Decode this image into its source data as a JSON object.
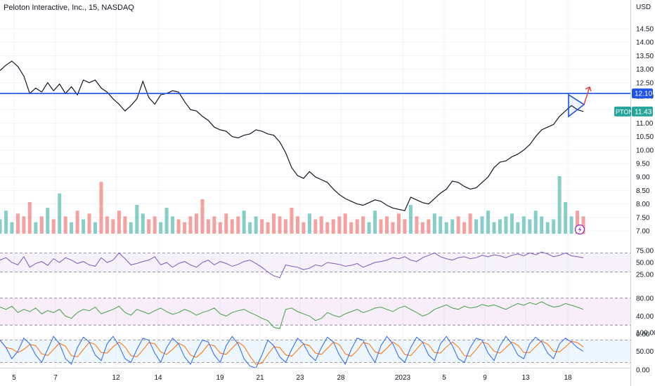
{
  "header": {
    "title": "Peloton Interactive, Inc., 15, NASDAQ",
    "currency": "USD"
  },
  "chart_data": {
    "type": "line",
    "title": "Peloton Interactive, Inc., 15, NASDAQ",
    "ylim": [
      6.9,
      14.9
    ],
    "price_ticks": [
      "14.50",
      "14.00",
      "13.50",
      "13.00",
      "12.50",
      "12.00",
      "11.50",
      "11.00",
      "10.50",
      "10.00",
      "9.50",
      "9.00",
      "8.50",
      "8.00",
      "7.50",
      "7.00"
    ],
    "x_labels": [
      "5",
      "7",
      "12",
      "14",
      "19",
      "21",
      "23",
      "28",
      "2023",
      "5",
      "9",
      "13",
      "18"
    ],
    "grid": true,
    "series": [
      {
        "values": [
          12.95,
          13.15,
          13.3,
          13.1,
          12.75,
          12.1,
          12.3,
          12.15,
          12.5,
          12.2,
          12.45,
          12.1,
          12.35,
          12.05,
          12.6,
          12.5,
          12.6,
          12.3,
          12.15,
          11.9,
          11.7,
          11.45,
          11.65,
          11.9,
          12.55,
          11.95,
          11.7,
          12.05,
          12.1,
          12.2,
          12.15,
          11.8,
          11.5,
          11.45,
          11.25,
          11.1,
          10.85,
          10.75,
          10.7,
          10.5,
          10.45,
          10.55,
          10.6,
          10.75,
          10.7,
          10.6,
          10.55,
          10.3,
          9.9,
          9.35,
          9.05,
          8.95,
          9.2,
          9.0,
          8.9,
          8.8,
          8.55,
          8.35,
          8.2,
          8.1,
          8.0,
          7.95,
          8.05,
          8.15,
          8.1,
          7.95,
          7.85,
          7.8,
          7.75,
          8.25,
          8.15,
          8.05,
          8.0,
          8.2,
          8.4,
          8.55,
          8.85,
          8.8,
          8.65,
          8.55,
          8.6,
          8.8,
          9.0,
          9.35,
          9.55,
          9.6,
          9.75,
          9.85,
          10.0,
          10.2,
          10.5,
          10.75,
          10.85,
          10.95,
          11.25,
          11.45,
          11.65,
          11.5,
          11.43
        ]
      }
    ],
    "current_price": {
      "symbol": "PTON",
      "value": "11.43",
      "color": "#26a69a"
    },
    "horizontal_level": {
      "value": 12.1,
      "label": "12.10",
      "color": "#1e53e5"
    },
    "volume": {
      "heights": [
        0.25,
        0.4,
        0.2,
        0.35,
        0.3,
        0.55,
        0.2,
        0.3,
        0.45,
        0.25,
        0.7,
        0.3,
        0.2,
        0.4,
        0.25,
        0.35,
        0.2,
        0.9,
        0.3,
        0.25,
        0.4,
        0.3,
        0.2,
        0.5,
        0.35,
        0.25,
        0.3,
        0.2,
        0.45,
        0.3,
        0.25,
        0.2,
        0.3,
        0.35,
        0.6,
        0.25,
        0.3,
        0.2,
        0.35,
        0.25,
        0.3,
        0.4,
        0.2,
        0.3,
        0.25,
        0.2,
        0.35,
        0.3,
        0.25,
        0.45,
        0.3,
        0.2,
        0.35,
        0.25,
        0.3,
        0.2,
        0.25,
        0.3,
        0.35,
        0.2,
        0.25,
        0.3,
        0.2,
        0.4,
        0.25,
        0.3,
        0.2,
        0.35,
        0.25,
        0.5,
        0.3,
        0.2,
        0.25,
        0.35,
        0.3,
        0.2,
        0.25,
        0.3,
        0.2,
        0.35,
        0.25,
        0.3,
        0.4,
        0.2,
        0.25,
        0.3,
        0.35,
        0.2,
        0.3,
        0.25,
        0.4,
        0.3,
        0.2,
        0.25,
        1.0,
        0.55,
        0.3,
        0.4,
        0.3
      ],
      "up_color": "#26a69a",
      "down_color": "#ef5350"
    },
    "rsi": {
      "ticks": [
        "75.00",
        "50.00",
        "25.00"
      ],
      "band": [
        30,
        70
      ],
      "values": [
        55,
        60,
        50,
        45,
        62,
        40,
        48,
        52,
        44,
        58,
        50,
        60,
        55,
        48,
        52,
        45,
        42,
        60,
        50,
        55,
        70,
        58,
        45,
        48,
        52,
        55,
        62,
        45,
        50,
        40,
        48,
        52,
        45,
        40,
        50,
        55,
        45,
        52,
        48,
        42,
        46,
        52,
        55,
        48,
        40,
        30,
        22,
        18,
        45,
        42,
        40,
        35,
        38,
        45,
        42,
        50,
        48,
        46,
        42,
        44,
        48,
        40,
        45,
        50,
        52,
        55,
        60,
        58,
        62,
        55,
        52,
        60,
        65,
        70,
        62,
        58,
        55,
        60,
        62,
        58,
        60,
        65,
        62,
        66,
        64,
        60,
        65,
        68,
        64,
        70,
        66,
        72,
        68,
        62,
        65,
        70,
        64,
        62,
        60
      ]
    },
    "indicator2": {
      "ticks": [
        "80.00",
        "40.00",
        "0.00"
      ],
      "band": [
        20,
        80
      ],
      "values": [
        60,
        55,
        62,
        48,
        55,
        50,
        58,
        45,
        52,
        48,
        55,
        40,
        35,
        48,
        55,
        52,
        60,
        45,
        50,
        55,
        62,
        48,
        42,
        55,
        50,
        45,
        52,
        58,
        50,
        44,
        48,
        55,
        50,
        42,
        48,
        52,
        58,
        45,
        40,
        48,
        52,
        55,
        48,
        42,
        35,
        30,
        15,
        12,
        55,
        58,
        50,
        45,
        40,
        30,
        35,
        48,
        42,
        38,
        45,
        50,
        55,
        48,
        52,
        58,
        60,
        55,
        50,
        58,
        62,
        55,
        48,
        40,
        45,
        55,
        60,
        65,
        58,
        55,
        62,
        58,
        60,
        66,
        62,
        65,
        60,
        55,
        62,
        68,
        64,
        70,
        66,
        72,
        65,
        60,
        62,
        68,
        64,
        60,
        55
      ]
    },
    "stochastic": {
      "ticks": [
        "100.00",
        "50.00",
        "0.00"
      ],
      "band": [
        20,
        80
      ],
      "k_values": [
        80,
        60,
        30,
        50,
        85,
        70,
        40,
        20,
        55,
        90,
        70,
        30,
        15,
        60,
        88,
        75,
        40,
        25,
        70,
        90,
        65,
        30,
        20,
        55,
        85,
        80,
        45,
        20,
        60,
        85,
        70,
        35,
        15,
        50,
        80,
        75,
        40,
        20,
        65,
        90,
        70,
        30,
        10,
        5,
        40,
        80,
        65,
        35,
        20,
        55,
        85,
        70,
        40,
        25,
        60,
        88,
        75,
        40,
        15,
        55,
        85,
        80,
        45,
        20,
        65,
        90,
        70,
        35,
        20,
        60,
        88,
        75,
        40,
        25,
        70,
        90,
        65,
        30,
        20,
        60,
        85,
        80,
        45,
        25,
        65,
        90,
        70,
        40,
        30,
        70,
        88,
        75,
        45,
        30,
        70,
        85,
        75,
        60,
        50
      ],
      "k_color": "#2962ff",
      "d_color": "#ff6d00"
    }
  }
}
